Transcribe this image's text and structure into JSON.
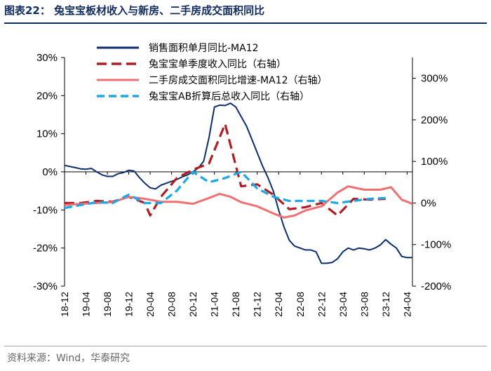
{
  "header": {
    "title": "图表22：  兔宝宝板材收入与新房、二手房成交面积同比"
  },
  "footer": {
    "source": "资料来源：Wind，华泰研究"
  },
  "chart_data": {
    "type": "line",
    "title": "",
    "xlabel": "",
    "ylabel": "",
    "y_left": {
      "min": -0.3,
      "max": 0.3,
      "ticks": [
        -0.3,
        -0.2,
        -0.1,
        0,
        0.1,
        0.2,
        0.3
      ],
      "tick_labels": [
        "-30%",
        "-20%",
        "-10%",
        "0%",
        "10%",
        "20%",
        "30%"
      ]
    },
    "y_right": {
      "min": -2.0,
      "max": 3.5,
      "ticks": [
        -2,
        -1,
        0,
        1,
        2,
        3
      ],
      "tick_labels": [
        "-200%",
        "-100%",
        "0%",
        "100%",
        "200%",
        "300%"
      ]
    },
    "x_ticks": [
      "18-12",
      "19-04",
      "19-08",
      "19-12",
      "20-04",
      "20-08",
      "20-12",
      "21-04",
      "21-08",
      "21-12",
      "22-04",
      "22-08",
      "22-12",
      "23-04",
      "23-08",
      "23-12",
      "24-04"
    ],
    "x_range": [
      "2018-12",
      "2024-05"
    ],
    "legend_position": "top",
    "grid": false,
    "series": [
      {
        "name": "销售面积单月同比-MA12",
        "axis": "left",
        "color": "#0c2e6e",
        "style": "solid",
        "points": [
          [
            "2018-12",
            0.017
          ],
          [
            "2019-01",
            0.014
          ],
          [
            "2019-02",
            0.011
          ],
          [
            "2019-03",
            0.008
          ],
          [
            "2019-04",
            0.007
          ],
          [
            "2019-05",
            0.009
          ],
          [
            "2019-06",
            0.0
          ],
          [
            "2019-07",
            -0.008
          ],
          [
            "2019-08",
            -0.012
          ],
          [
            "2019-09",
            -0.012
          ],
          [
            "2019-10",
            -0.005
          ],
          [
            "2019-11",
            -0.002
          ],
          [
            "2019-12",
            0.004
          ],
          [
            "2020-01",
            0.002
          ],
          [
            "2020-02",
            -0.015
          ],
          [
            "2020-03",
            -0.03
          ],
          [
            "2020-04",
            -0.042
          ],
          [
            "2020-05",
            -0.045
          ],
          [
            "2020-06",
            -0.035
          ],
          [
            "2020-07",
            -0.03
          ],
          [
            "2020-08",
            -0.025
          ],
          [
            "2020-09",
            -0.02
          ],
          [
            "2020-10",
            -0.013
          ],
          [
            "2020-11",
            -0.008
          ],
          [
            "2020-12",
            0.0
          ],
          [
            "2021-01",
            0.01
          ],
          [
            "2021-02",
            0.028
          ],
          [
            "2021-03",
            0.09
          ],
          [
            "2021-04",
            0.17
          ],
          [
            "2021-05",
            0.175
          ],
          [
            "2021-06",
            0.174
          ],
          [
            "2021-07",
            0.18
          ],
          [
            "2021-08",
            0.17
          ],
          [
            "2021-09",
            0.145
          ],
          [
            "2021-10",
            0.12
          ],
          [
            "2021-11",
            0.085
          ],
          [
            "2021-12",
            0.05
          ],
          [
            "2022-01",
            0.015
          ],
          [
            "2022-02",
            -0.015
          ],
          [
            "2022-03",
            -0.05
          ],
          [
            "2022-04",
            -0.1
          ],
          [
            "2022-05",
            -0.145
          ],
          [
            "2022-06",
            -0.18
          ],
          [
            "2022-07",
            -0.195
          ],
          [
            "2022-08",
            -0.2
          ],
          [
            "2022-09",
            -0.205
          ],
          [
            "2022-10",
            -0.205
          ],
          [
            "2022-11",
            -0.21
          ],
          [
            "2022-12",
            -0.24
          ],
          [
            "2023-01",
            -0.24
          ],
          [
            "2023-02",
            -0.238
          ],
          [
            "2023-03",
            -0.228
          ],
          [
            "2023-04",
            -0.21
          ],
          [
            "2023-05",
            -0.2
          ],
          [
            "2023-06",
            -0.205
          ],
          [
            "2023-07",
            -0.2
          ],
          [
            "2023-08",
            -0.202
          ],
          [
            "2023-09",
            -0.205
          ],
          [
            "2023-10",
            -0.2
          ],
          [
            "2023-11",
            -0.192
          ],
          [
            "2023-12",
            -0.178
          ],
          [
            "2024-01",
            -0.19
          ],
          [
            "2024-02",
            -0.2
          ],
          [
            "2024-03",
            -0.222
          ],
          [
            "2024-04",
            -0.225
          ],
          [
            "2024-05",
            -0.225
          ]
        ]
      },
      {
        "name": "兔宝宝单季度收入同比（右轴）",
        "axis": "right",
        "color": "#b01e23",
        "style": "long-dash",
        "points": [
          [
            "2018-12",
            0.0
          ],
          [
            "2019-03",
            0.0
          ],
          [
            "2019-06",
            0.05
          ],
          [
            "2019-09",
            0.03
          ],
          [
            "2019-12",
            0.15
          ],
          [
            "2020-03",
            0.0
          ],
          [
            "2020-04",
            -0.3
          ],
          [
            "2020-06",
            0.15
          ],
          [
            "2020-09",
            0.6
          ],
          [
            "2020-12",
            0.8
          ],
          [
            "2021-03",
            0.95
          ],
          [
            "2021-06",
            1.9
          ],
          [
            "2021-09",
            0.4
          ],
          [
            "2021-12",
            0.45
          ],
          [
            "2022-03",
            0.2
          ],
          [
            "2022-06",
            -0.15
          ],
          [
            "2022-09",
            -0.1
          ],
          [
            "2022-12",
            0.0
          ],
          [
            "2023-03",
            -0.3
          ],
          [
            "2023-06",
            0.1
          ],
          [
            "2023-09",
            0.08
          ],
          [
            "2023-12",
            0.1
          ]
        ]
      },
      {
        "name": "二手房成交面积同比增速-MA12（右轴）",
        "axis": "right",
        "color": "#f07070",
        "style": "solid",
        "points": [
          [
            "2018-12",
            -0.05
          ],
          [
            "2019-03",
            -0.02
          ],
          [
            "2019-06",
            0.0
          ],
          [
            "2019-09",
            0.02
          ],
          [
            "2019-12",
            0.15
          ],
          [
            "2020-03",
            0.1
          ],
          [
            "2020-06",
            0.03
          ],
          [
            "2020-09",
            0.03
          ],
          [
            "2020-12",
            -0.02
          ],
          [
            "2021-03",
            0.12
          ],
          [
            "2021-05",
            0.22
          ],
          [
            "2021-07",
            0.15
          ],
          [
            "2021-09",
            0.02
          ],
          [
            "2021-12",
            -0.08
          ],
          [
            "2022-03",
            -0.25
          ],
          [
            "2022-05",
            -0.35
          ],
          [
            "2022-07",
            -0.3
          ],
          [
            "2022-09",
            -0.18
          ],
          [
            "2022-12",
            -0.08
          ],
          [
            "2023-03",
            0.25
          ],
          [
            "2023-05",
            0.4
          ],
          [
            "2023-08",
            0.32
          ],
          [
            "2023-11",
            0.32
          ],
          [
            "2024-01",
            0.38
          ],
          [
            "2024-03",
            0.08
          ],
          [
            "2024-05",
            -0.02
          ]
        ]
      },
      {
        "name": "兔宝宝AB折算后总收入同比（右轴）",
        "axis": "right",
        "color": "#1ba7e8",
        "style": "dash",
        "points": [
          [
            "2018-12",
            -0.12
          ],
          [
            "2019-03",
            -0.05
          ],
          [
            "2019-06",
            0.02
          ],
          [
            "2019-09",
            0.0
          ],
          [
            "2019-12",
            0.2
          ],
          [
            "2020-03",
            0.0
          ],
          [
            "2020-06",
            0.0
          ],
          [
            "2020-09",
            0.3
          ],
          [
            "2020-12",
            0.75
          ],
          [
            "2021-03",
            0.5
          ],
          [
            "2021-06",
            0.6
          ],
          [
            "2021-09",
            0.75
          ],
          [
            "2021-12",
            0.35
          ],
          [
            "2022-03",
            0.15
          ],
          [
            "2022-06",
            0.05
          ],
          [
            "2022-09",
            0.05
          ],
          [
            "2022-12",
            0.05
          ],
          [
            "2023-03",
            0.0
          ],
          [
            "2023-06",
            0.05
          ],
          [
            "2023-09",
            0.1
          ],
          [
            "2023-12",
            0.12
          ]
        ]
      }
    ]
  }
}
